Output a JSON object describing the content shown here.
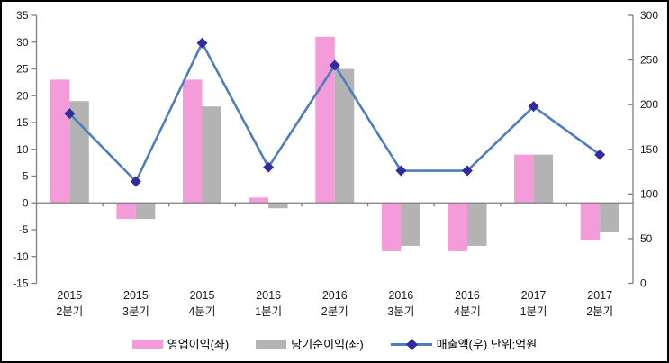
{
  "window": {
    "background": "#FFFFFF",
    "border_color": "#000000"
  },
  "chart_data": {
    "type": "bar",
    "subtype": "combo-bar-line",
    "categories": [
      {
        "line1": "2015",
        "line2": "2분기"
      },
      {
        "line1": "2015",
        "line2": "3분기"
      },
      {
        "line1": "2015",
        "line2": "4분기"
      },
      {
        "line1": "2016",
        "line2": "1분기"
      },
      {
        "line1": "2016",
        "line2": "2분기"
      },
      {
        "line1": "2016",
        "line2": "3분기"
      },
      {
        "line1": "2016",
        "line2": "4분기"
      },
      {
        "line1": "2017",
        "line2": "1분기"
      },
      {
        "line1": "2017",
        "line2": "2분기"
      }
    ],
    "series": [
      {
        "name": "영업이익(좌)",
        "type": "bar",
        "axis": "left",
        "color": "#F49BD9",
        "values": [
          23,
          -3,
          23,
          1,
          31,
          -9,
          -9,
          9,
          -7
        ]
      },
      {
        "name": "당기순이익(좌)",
        "type": "bar",
        "axis": "left",
        "color": "#B3B3B3",
        "values": [
          19,
          -3,
          18,
          -1,
          25,
          -8,
          -8,
          9,
          -5.5
        ]
      },
      {
        "name": "매출액(우) 단위:억원",
        "type": "line",
        "axis": "right",
        "color": "#4E7DBD",
        "marker_color": "#322B9E",
        "marker_shape": "diamond",
        "values": [
          190,
          114,
          269,
          130,
          244,
          126,
          126,
          198,
          144
        ]
      }
    ],
    "left_axis": {
      "min": -15,
      "max": 35,
      "step": 5,
      "tick_labels": [
        "35",
        "30",
        "25",
        "20",
        "15",
        "10",
        "5",
        "0",
        "-5",
        "-10",
        "-15"
      ]
    },
    "right_axis": {
      "min": 0,
      "max": 300,
      "step": 50,
      "tick_labels": [
        "300",
        "250",
        "200",
        "150",
        "100",
        "50",
        "0"
      ]
    },
    "grid": false,
    "axis_color": "#7F7F7F",
    "label_color": "#1A1A1A",
    "legend_position": "bottom"
  },
  "legend": {
    "items": [
      {
        "label": "영업이익(좌)",
        "kind": "bar-swatch"
      },
      {
        "label": "당기순이익(좌)",
        "kind": "bar-swatch"
      },
      {
        "label": "매출액(우) 단위:억원",
        "kind": "line-marker-swatch"
      }
    ]
  }
}
